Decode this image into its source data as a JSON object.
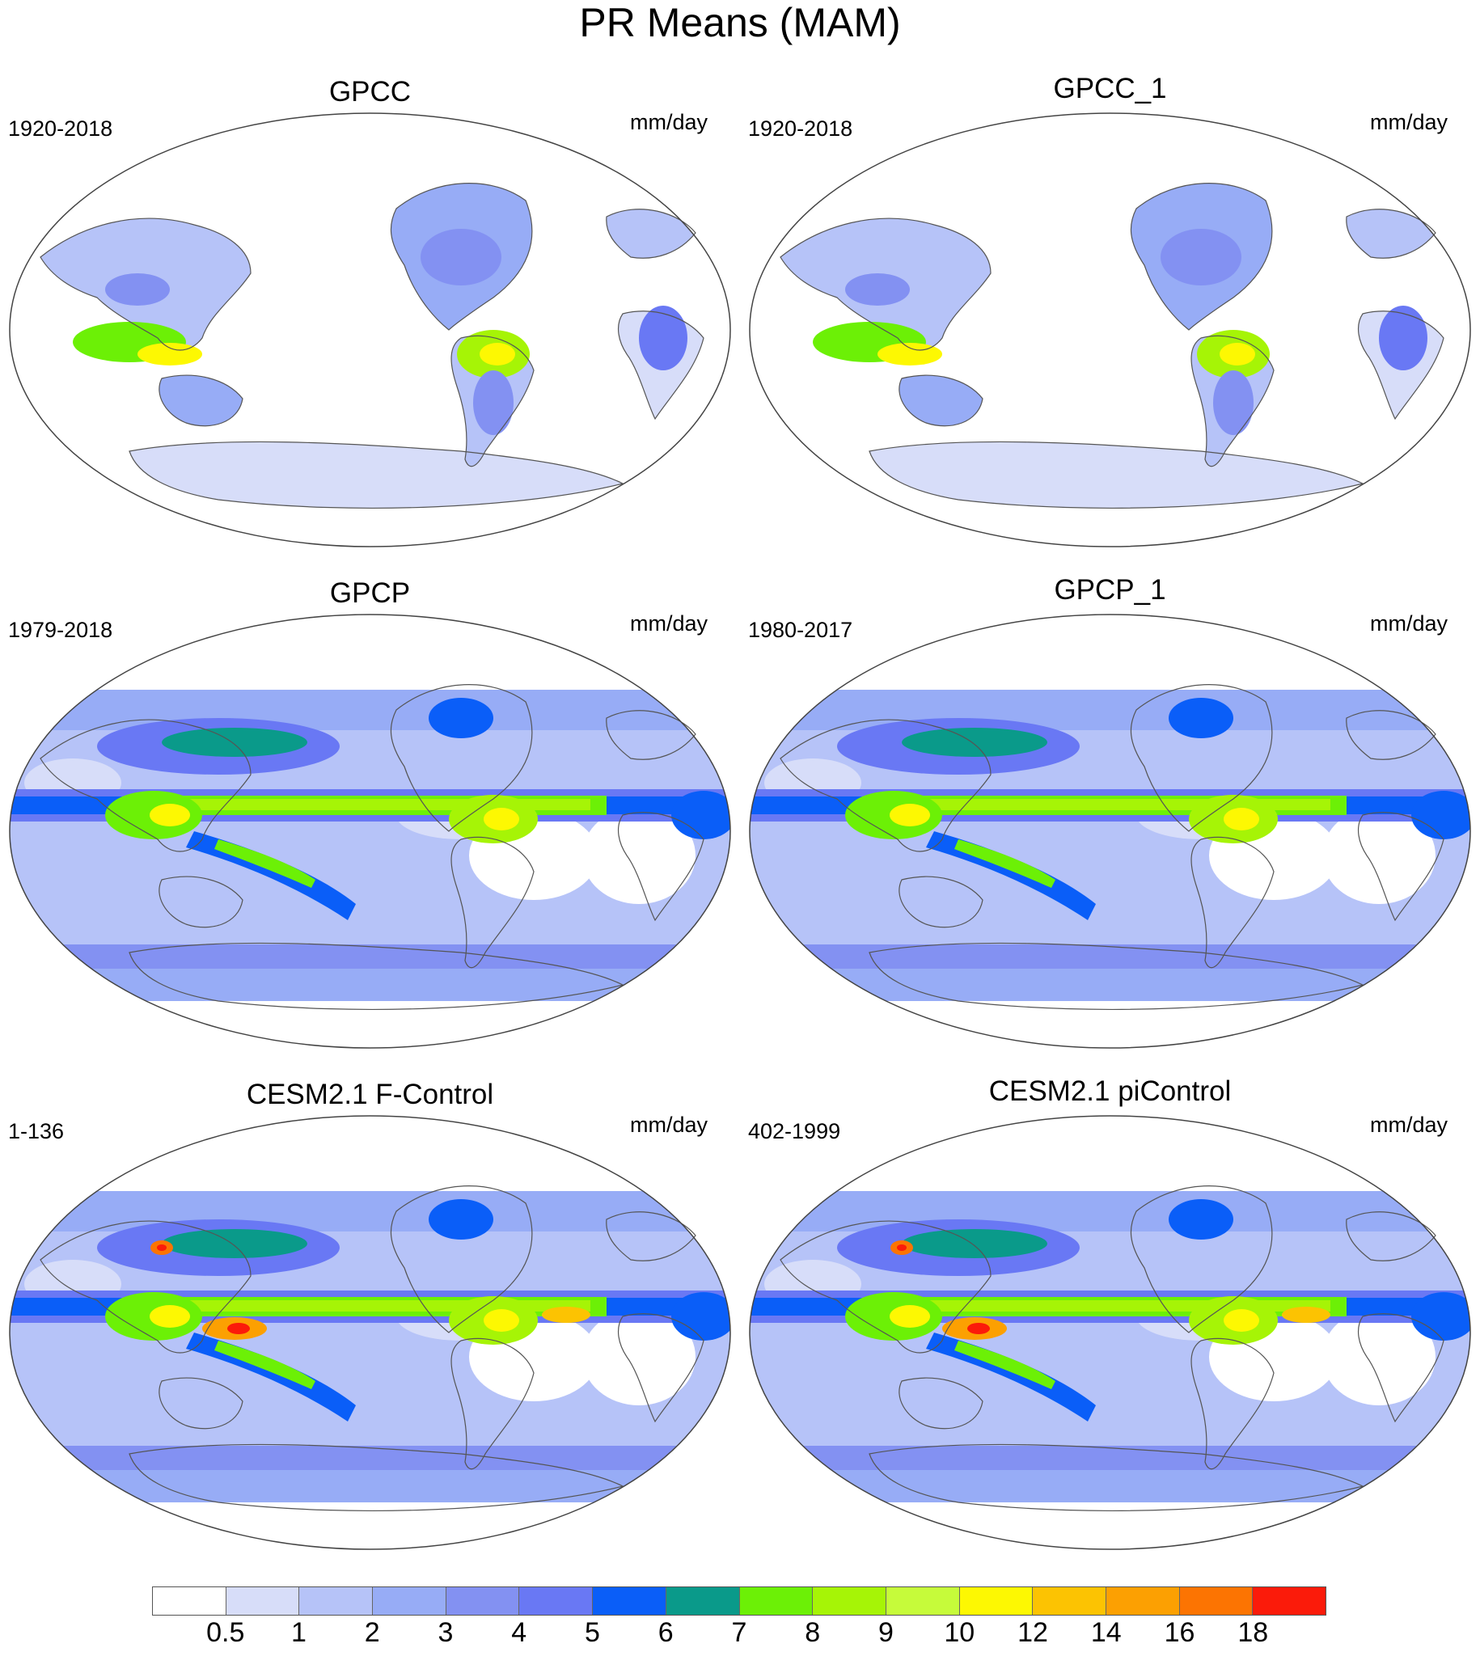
{
  "title": "PR Means (MAM)",
  "colors": {
    "ocean_background": "#ffffff",
    "coastline": "#555555"
  },
  "panels": [
    {
      "title": "GPCC",
      "period": "1920-2018",
      "units": "mm/day",
      "field": "land_only"
    },
    {
      "title": "GPCC_1",
      "period": "1920-2018",
      "units": "mm/day",
      "field": "land_only"
    },
    {
      "title": "GPCP",
      "period": "1979-2018",
      "units": "mm/day",
      "field": "global"
    },
    {
      "title": "GPCP_1",
      "period": "1980-2017",
      "units": "mm/day",
      "field": "global"
    },
    {
      "title": "CESM2.1 F-Control",
      "period": "1-136",
      "units": "mm/day",
      "field": "model"
    },
    {
      "title": "CESM2.1 piControl",
      "period": "402-1999",
      "units": "mm/day",
      "field": "model"
    }
  ],
  "colorbar": {
    "colors": [
      "#ffffff",
      "#d7ddf9",
      "#b6c3f8",
      "#97acf6",
      "#8391f2",
      "#6978f4",
      "#0a5ef8",
      "#0a9a8a",
      "#6cf006",
      "#a6f406",
      "#c6fb3a",
      "#fdf802",
      "#fcc302",
      "#fca002",
      "#fc7402",
      "#fb1b0a"
    ],
    "labels": [
      "0.5",
      "1",
      "2",
      "3",
      "4",
      "5",
      "6",
      "7",
      "8",
      "9",
      "10",
      "12",
      "14",
      "16",
      "18"
    ]
  }
}
